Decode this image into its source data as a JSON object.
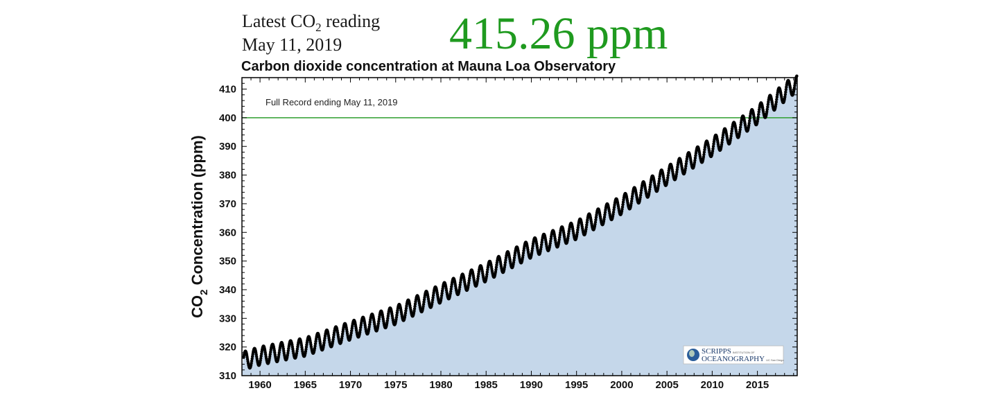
{
  "header": {
    "latest_prefix": "Latest CO",
    "latest_sub": "2",
    "latest_suffix": " reading",
    "date": "May 11, 2019",
    "reading": "415.26 ppm"
  },
  "chart_data": {
    "type": "scatter",
    "title": "Carbon dioxide concentration at Mauna Loa Observatory",
    "annotation": "Full Record ending May 11, 2019",
    "ylabel_main": "CO",
    "ylabel_sub": "2",
    "ylabel_rest": " Concentration (ppm)",
    "xlim": [
      1958,
      2019.4
    ],
    "ylim": [
      310,
      414
    ],
    "x_ticks": [
      1960,
      1965,
      1970,
      1975,
      1980,
      1985,
      1990,
      1995,
      2000,
      2005,
      2010,
      2015
    ],
    "y_ticks": [
      310,
      320,
      330,
      340,
      350,
      360,
      370,
      380,
      390,
      400,
      410
    ],
    "reference_line": {
      "y": 400,
      "color": "#2e9e2e"
    },
    "fill_color": "#c5d7ea",
    "point_color": "#000000",
    "series": [
      {
        "trend_x": [
          1958,
          1960,
          1965,
          1970,
          1975,
          1980,
          1985,
          1990,
          1995,
          2000,
          2005,
          2010,
          2015,
          2019
        ],
        "trend_y": [
          315.0,
          316.9,
          320.0,
          325.7,
          331.1,
          338.7,
          346.1,
          354.4,
          360.8,
          369.6,
          379.8,
          389.9,
          401.0,
          411.4
        ],
        "seasonal_amplitude": 3.2
      }
    ],
    "grid": false,
    "legend": "none"
  },
  "logo": {
    "line1": "SCRIPPS",
    "line1_small": "INSTITUTION OF",
    "line2": "OCEANOGRAPHY",
    "line2_small": "UC San Diego"
  }
}
